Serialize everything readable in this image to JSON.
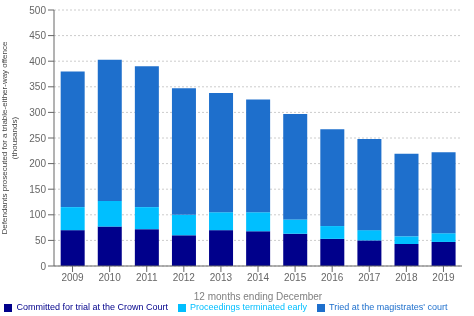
{
  "chart_data": {
    "type": "bar",
    "stacked": true,
    "categories": [
      "2009",
      "2010",
      "2011",
      "2012",
      "2013",
      "2014",
      "2015",
      "2016",
      "2017",
      "2018",
      "2019"
    ],
    "series": [
      {
        "name": "Committed for trial at the Crown Court",
        "color": "#00008B",
        "values": [
          70,
          77,
          72,
          60,
          70,
          68,
          63,
          53,
          50,
          43,
          47
        ]
      },
      {
        "name": "Proceedings terminated early",
        "color": "#00BFFF",
        "values": [
          45,
          50,
          43,
          40,
          35,
          37,
          28,
          25,
          20,
          15,
          17
        ]
      },
      {
        "name": "Tried at the magistrates' court",
        "color": "#1E6FCC",
        "values": [
          265,
          276,
          275,
          247,
          233,
          220,
          206,
          189,
          178,
          161,
          158
        ]
      }
    ],
    "xlabel": "12 months ending December",
    "ylabel": "Defendants prosecuted for a triable-either-way offence\n(thousands)",
    "ylim": [
      0,
      500
    ],
    "yticks": [
      0,
      50,
      100,
      150,
      200,
      250,
      300,
      350,
      400,
      450,
      500
    ],
    "grid": true,
    "legend": "bottom"
  }
}
